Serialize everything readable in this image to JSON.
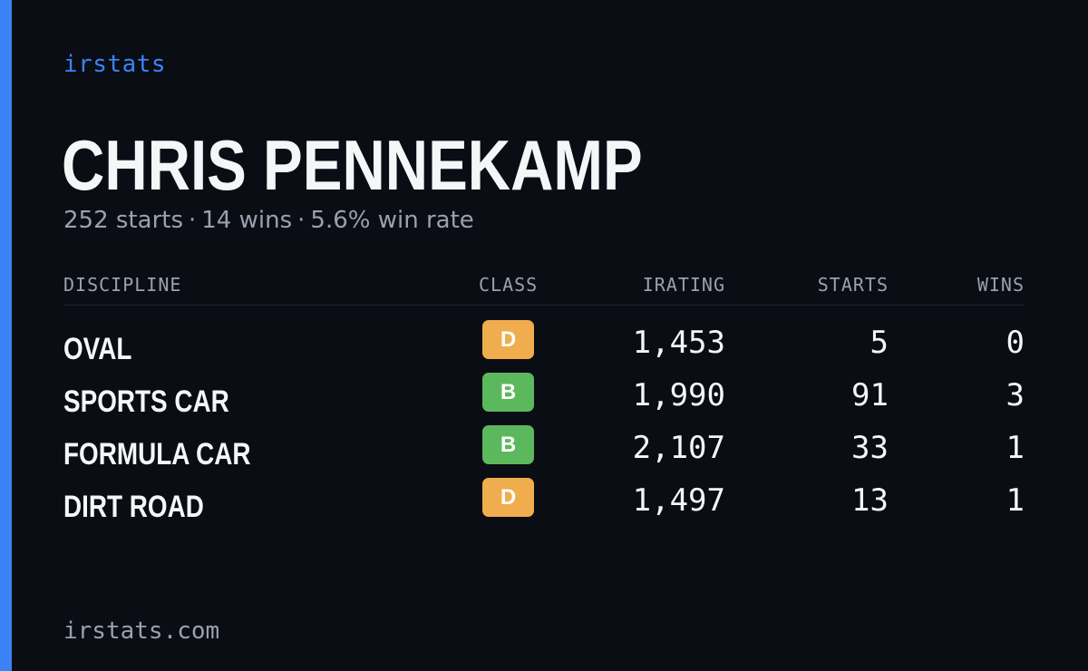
{
  "brand": "irstats",
  "player": {
    "name": "CHRIS PENNEKAMP",
    "starts": "252 starts",
    "wins": "14 wins",
    "win_rate": "5.6% win rate",
    "separator": "·"
  },
  "table": {
    "headers": {
      "discipline": "DISCIPLINE",
      "class": "CLASS",
      "irating": "IRATING",
      "starts": "STARTS",
      "wins": "WINS"
    },
    "rows": [
      {
        "discipline": "OVAL",
        "class": "D",
        "irating": "1,453",
        "starts": "5",
        "wins": "0"
      },
      {
        "discipline": "SPORTS CAR",
        "class": "B",
        "irating": "1,990",
        "starts": "91",
        "wins": "3"
      },
      {
        "discipline": "FORMULA CAR",
        "class": "B",
        "irating": "2,107",
        "starts": "33",
        "wins": "1"
      },
      {
        "discipline": "DIRT ROAD",
        "class": "D",
        "irating": "1,497",
        "starts": "13",
        "wins": "1"
      }
    ]
  },
  "class_colors": {
    "B": "#5cb85c",
    "D": "#f0ad4e"
  },
  "accent_color": "#3b82f6",
  "footer": {
    "url": "irstats.com"
  }
}
